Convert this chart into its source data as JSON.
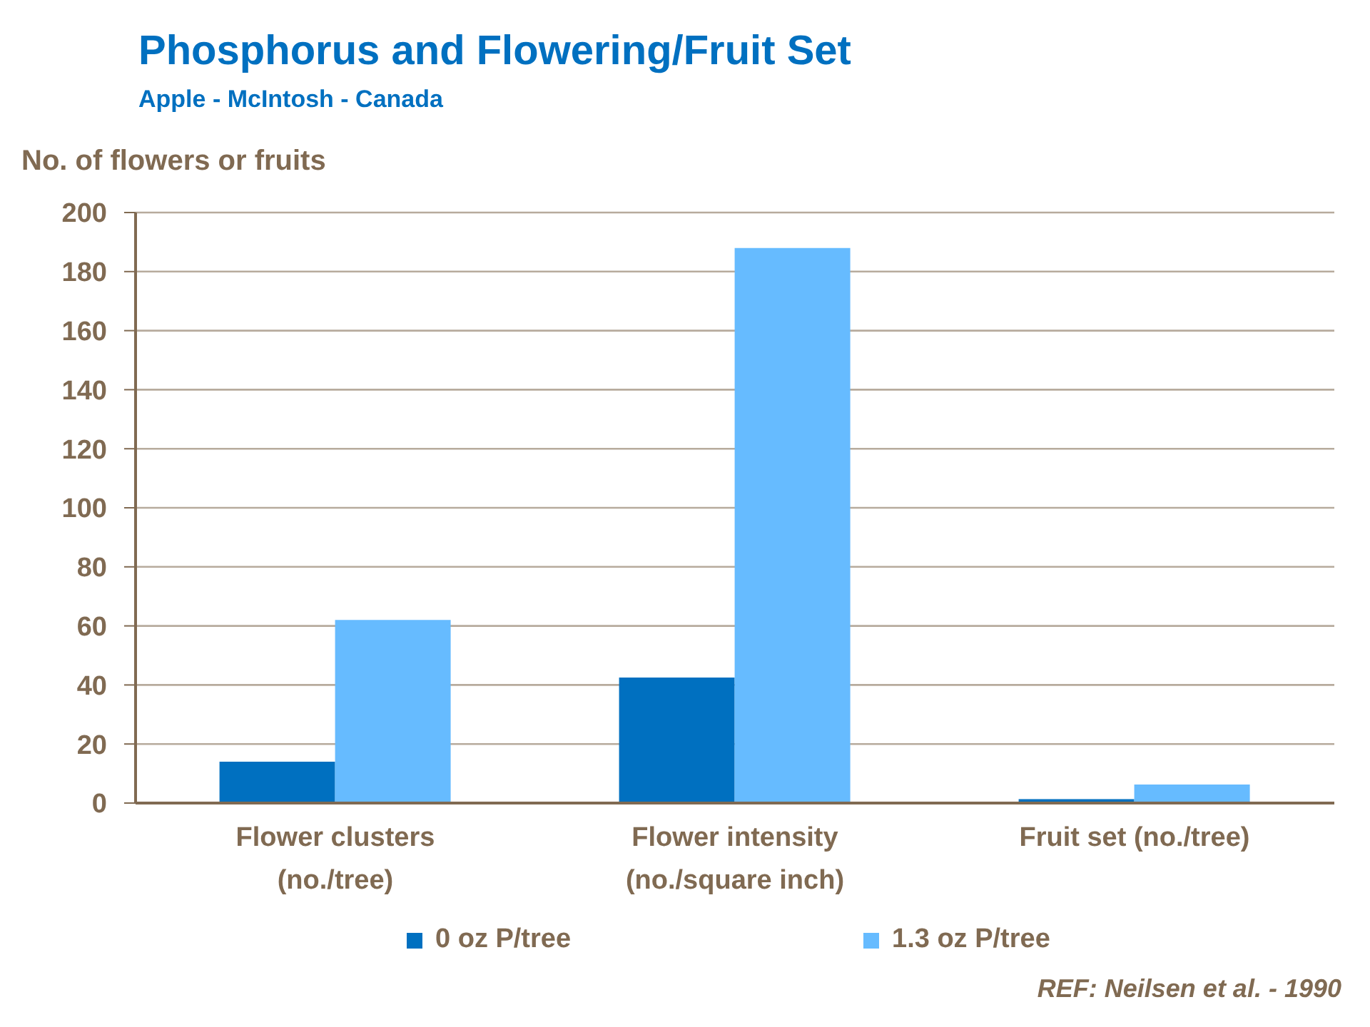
{
  "chart_data": {
    "type": "bar",
    "title": "Phosphorus and Flowering/Fruit Set",
    "subtitle": "Apple - McIntosh - Canada",
    "ylabel": "No. of flowers or fruits",
    "categories": [
      "Flower clusters\n(no./tree)",
      "Flower intensity\n(no./square inch)",
      "Fruit set (no./tree)"
    ],
    "series": [
      {
        "name": "0 oz P/tree",
        "color": "#0070c0",
        "values": [
          14,
          42.5,
          1.3
        ]
      },
      {
        "name": "1.3 oz P/tree",
        "color": "#66bbff",
        "values": [
          62,
          188,
          6.3
        ]
      }
    ],
    "ylim": [
      0,
      200
    ],
    "yticks": [
      0,
      20,
      40,
      60,
      80,
      100,
      120,
      140,
      160,
      180,
      200
    ],
    "grid": "y",
    "legend": "bottom",
    "annotations": [
      "REF: Neilsen et al. - 1990"
    ]
  }
}
